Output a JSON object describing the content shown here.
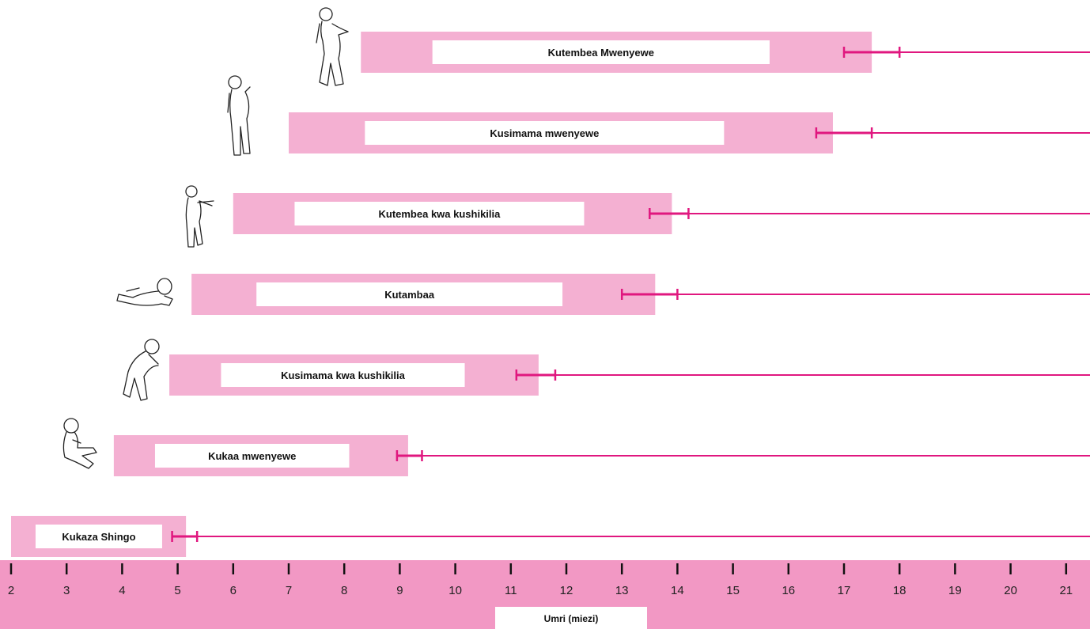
{
  "chart_data": {
    "type": "range-bar",
    "xlabel": "Umri (miezi)",
    "xlim": [
      2,
      21
    ],
    "ticks": [
      2,
      3,
      4,
      5,
      6,
      7,
      8,
      9,
      10,
      11,
      12,
      13,
      14,
      15,
      16,
      17,
      18,
      19,
      20,
      21
    ],
    "milestones": [
      {
        "label": "Kutembea Mwenyewe",
        "icon": "baby-walking-icon",
        "start": 8.3,
        "end": 17.5,
        "error_low": 17.0,
        "error_high": 18.0
      },
      {
        "label": "Kusimama mwenyewe",
        "icon": "baby-standing-icon",
        "start": 7.0,
        "end": 16.8,
        "error_low": 16.5,
        "error_high": 17.5
      },
      {
        "label": "Kutembea kwa kushikilia",
        "icon": "baby-cruising-icon",
        "start": 6.0,
        "end": 13.9,
        "error_low": 13.5,
        "error_high": 14.2
      },
      {
        "label": "Kutambaa",
        "icon": "baby-crawling-icon",
        "start": 5.25,
        "end": 13.6,
        "error_low": 13.0,
        "error_high": 14.0
      },
      {
        "label": "Kusimama kwa kushikilia",
        "icon": "baby-pulling-up-icon",
        "start": 4.85,
        "end": 11.5,
        "error_low": 11.1,
        "error_high": 11.8
      },
      {
        "label": "Kukaa mwenyewe",
        "icon": "baby-sitting-icon",
        "start": 3.85,
        "end": 9.15,
        "error_low": 8.95,
        "error_high": 9.4
      },
      {
        "label": "Kukaza Shingo",
        "icon": "",
        "start": 2.0,
        "end": 5.15,
        "error_low": 4.9,
        "error_high": 5.35
      }
    ],
    "colors": {
      "bar": "#f4b0d2",
      "label_box": "#ffffff",
      "error_line": "#e0177f",
      "axis_band": "#f298c4"
    }
  }
}
